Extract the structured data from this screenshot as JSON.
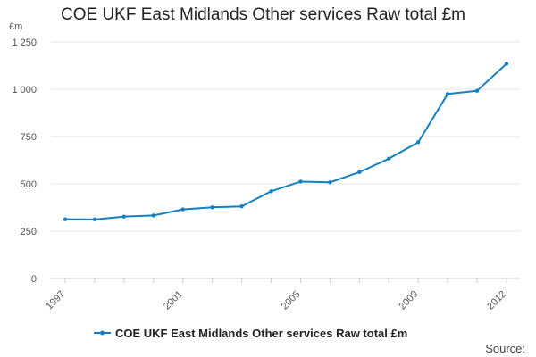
{
  "chart_data": {
    "type": "line",
    "title": "COE UKF East Midlands Other services Raw total £m",
    "ylabel": "£m",
    "xlabel": "",
    "x": [
      "1997",
      "1998",
      "1999",
      "2000",
      "2001",
      "2002",
      "2003",
      "2004",
      "2005",
      "2006",
      "2007",
      "2008",
      "2009",
      "2010",
      "2011",
      "2012"
    ],
    "x_tick_labels": [
      "1997",
      "2001",
      "2005",
      "2009",
      "2012"
    ],
    "y_tick_labels": [
      "0",
      "250",
      "500",
      "750",
      "1 000",
      "1 250"
    ],
    "y_ticks": [
      0,
      250,
      500,
      750,
      1000,
      1250
    ],
    "ylim": [
      0,
      1250
    ],
    "grid": true,
    "series": [
      {
        "name": "COE UKF East Midlands Other services Raw total £m",
        "color": "#1380c3",
        "values": [
          313,
          312,
          327,
          333,
          365,
          376,
          381,
          461,
          512,
          508,
          562,
          633,
          720,
          975,
          992,
          1135
        ]
      }
    ],
    "legend": "bottom-center",
    "source": "Source:"
  }
}
